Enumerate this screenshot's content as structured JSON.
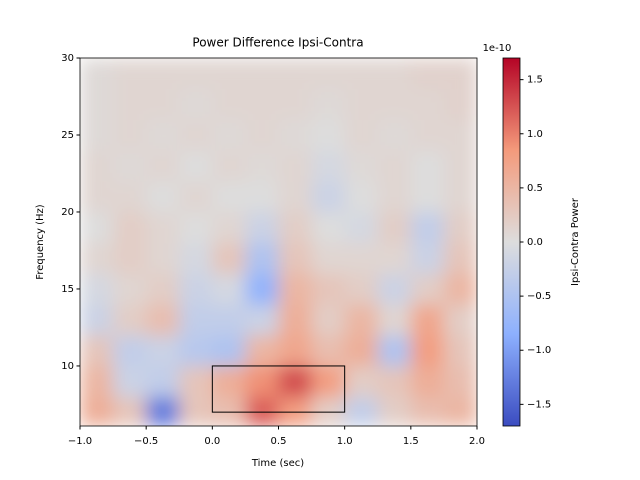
{
  "chart_data": {
    "type": "heatmap",
    "title": "Power Difference Ipsi-Contra",
    "xlabel": "Time (sec)",
    "ylabel": "Frequency (Hz)",
    "xlim": [
      -1,
      2
    ],
    "ylim": [
      6.1,
      30
    ],
    "xticks": [
      {
        "value": -1,
        "label": "−1.0"
      },
      {
        "value": -0.5,
        "label": "−0.5"
      },
      {
        "value": 0,
        "label": "0.0"
      },
      0.5,
      {
        "value": 1,
        "label": "1.0"
      },
      1.5,
      {
        "value": 2,
        "label": "2.0"
      }
    ],
    "yticks": [
      10,
      15,
      20,
      25,
      30
    ],
    "x": [
      -0.875,
      -0.625,
      -0.375,
      -0.125,
      0.125,
      0.375,
      0.625,
      0.875,
      1.125,
      1.375,
      1.625,
      1.875
    ],
    "y": [
      7,
      9,
      11,
      13,
      15,
      17,
      19,
      21,
      23,
      25,
      27,
      29
    ],
    "z": [
      [
        0.6,
        0.3,
        -1.3,
        0.3,
        0.4,
        1.2,
        0.8,
        0.2,
        -0.3,
        0.2,
        0.4,
        0.5
      ],
      [
        0.5,
        -0.2,
        -0.3,
        0.3,
        0.6,
        0.9,
        1.3,
        0.8,
        0.2,
        0.3,
        0.6,
        0.4
      ],
      [
        0.3,
        -0.3,
        -0.2,
        -0.4,
        -0.5,
        0.5,
        0.7,
        0.4,
        0.6,
        -0.5,
        0.8,
        0.3
      ],
      [
        -0.2,
        0.2,
        0.4,
        -0.3,
        -0.3,
        -0.2,
        0.6,
        0.2,
        0.5,
        0.1,
        0.7,
        0.2
      ],
      [
        -0.1,
        0.1,
        0.2,
        -0.2,
        -0.1,
        -0.8,
        0.5,
        0.3,
        0.2,
        -0.2,
        0.2,
        0.5
      ],
      [
        0.1,
        0.2,
        0.1,
        -0.1,
        0.3,
        -0.5,
        0.3,
        0.1,
        0.1,
        0.1,
        -0.2,
        0.3
      ],
      [
        0,
        0.2,
        0.1,
        0,
        0.1,
        -0.2,
        0.2,
        0,
        -0.1,
        0.2,
        -0.3,
        0.2
      ],
      [
        0.1,
        0.1,
        0,
        0.1,
        0,
        0,
        0.1,
        -0.2,
        0,
        0.1,
        0,
        0.1
      ],
      [
        0.1,
        0.05,
        0.1,
        0,
        0.1,
        0.05,
        0.1,
        -0.1,
        0.05,
        0.1,
        0,
        0.1
      ],
      [
        0.05,
        0.1,
        0.05,
        0.1,
        0.05,
        0.1,
        0.05,
        0,
        0.1,
        0.05,
        0.1,
        0.1
      ],
      [
        0.05,
        0.1,
        0.1,
        0.05,
        0.1,
        0.1,
        0.1,
        0.05,
        0.1,
        0.1,
        0.1,
        0.15
      ],
      [
        0.05,
        0.1,
        0.1,
        0.1,
        0.1,
        0.1,
        0.1,
        0.1,
        0.1,
        0.1,
        0.15,
        0.15
      ]
    ],
    "colormap": [
      "#3b4cc0",
      "#8db0fe",
      "#dddddd",
      "#f49a7b",
      "#b40426"
    ],
    "clim": [
      -1.7,
      1.7
    ],
    "cticks": [
      {
        "value": -1.5,
        "label": "−1.5"
      },
      {
        "value": -1,
        "label": "−1.0"
      },
      {
        "value": -0.5,
        "label": "−0.5"
      },
      {
        "value": 0,
        "label": "0.0"
      },
      0.5,
      {
        "value": 1,
        "label": "1.0"
      },
      1.5
    ],
    "colorbar_offset": "1e-10",
    "colorbar_label": "Ipsi-Contra Power",
    "roi": {
      "x": [
        0,
        1
      ],
      "y": [
        7,
        10
      ]
    }
  }
}
